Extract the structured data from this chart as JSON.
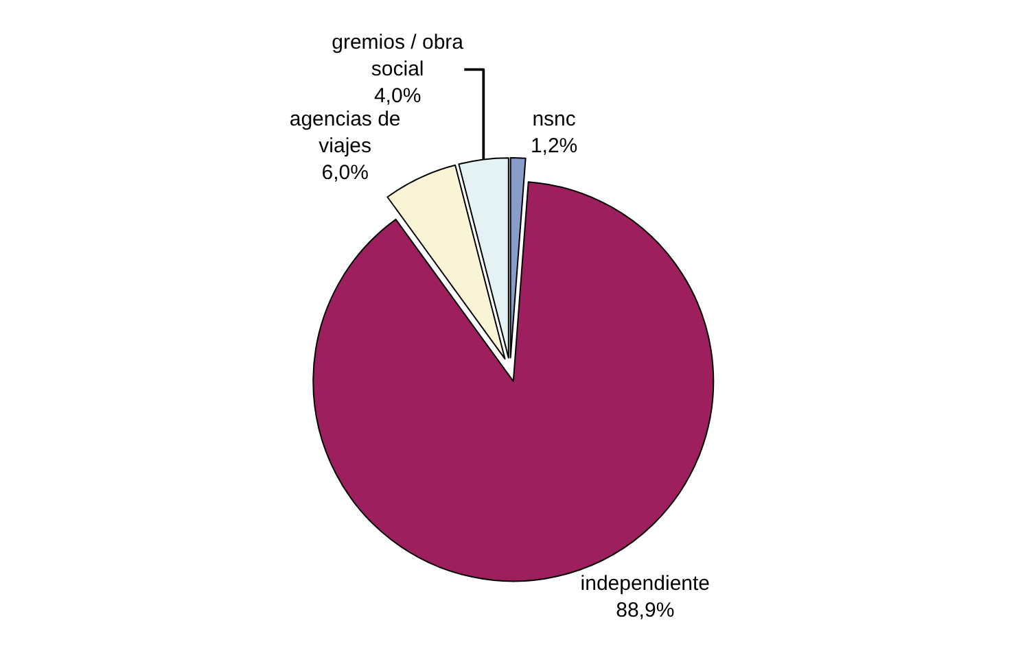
{
  "chart_data": {
    "type": "pie",
    "categories": [
      "nsnc",
      "independiente",
      "agencias de viajes",
      "gremios / obra social"
    ],
    "values": [
      1.2,
      88.9,
      6.0,
      4.0
    ],
    "value_labels": [
      "1,2%",
      "88,9%",
      "6,0%",
      "4,0%"
    ],
    "colors": [
      "#8a9cc8",
      "#9e1f5e",
      "#f9f4d6",
      "#e4f2f4"
    ],
    "legend": false
  }
}
